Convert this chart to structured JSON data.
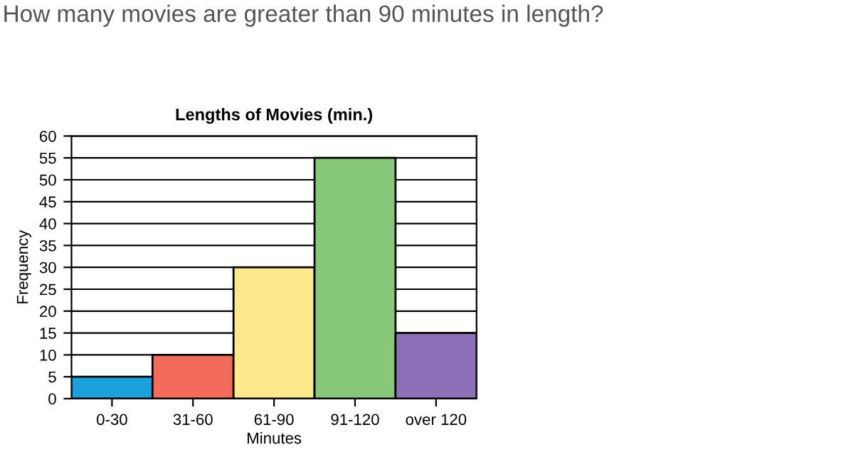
{
  "chart_data": {
    "type": "bar",
    "title": "Lengths of Movies (min.)",
    "xlabel": "Minutes",
    "ylabel": "Frequency",
    "annotations": [
      "How many movies are greater than 90 minutes in length?"
    ],
    "categories": [
      "0-30",
      "31-60",
      "61-90",
      "91-120",
      "over 120"
    ],
    "values": [
      5,
      10,
      30,
      55,
      15
    ],
    "colors": [
      "#1ba1dc",
      "#f26b5b",
      "#fde98c",
      "#87c878",
      "#8c70b8"
    ],
    "ylim": [
      0,
      60
    ],
    "yticks": [
      0,
      5,
      10,
      15,
      20,
      25,
      30,
      35,
      40,
      45,
      50,
      55,
      60
    ],
    "grid": "y"
  }
}
